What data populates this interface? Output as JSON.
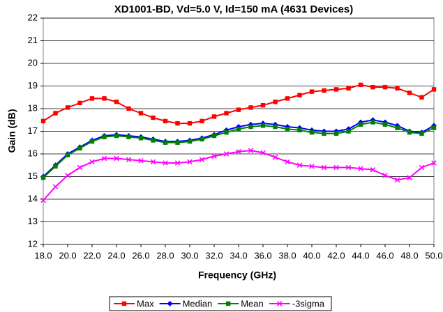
{
  "chart_data": {
    "type": "line",
    "title": "XD1001-BD, Vd=5.0 V, Id=150 mA (4631 Devices)",
    "x_label": "Frequency (GHz)",
    "y_label": "Gain (dB)",
    "x": [
      18,
      19,
      20,
      21,
      22,
      23,
      24,
      25,
      26,
      27,
      28,
      29,
      30,
      31,
      32,
      33,
      34,
      35,
      36,
      37,
      38,
      39,
      40,
      41,
      42,
      43,
      44,
      45,
      46,
      47,
      48,
      49,
      50
    ],
    "series": [
      {
        "name": "Max",
        "color": "#ff0000",
        "marker": "square",
        "values": [
          17.45,
          17.8,
          18.05,
          18.25,
          18.45,
          18.45,
          18.3,
          18.0,
          17.8,
          17.6,
          17.45,
          17.35,
          17.35,
          17.45,
          17.65,
          17.8,
          17.95,
          18.05,
          18.15,
          18.3,
          18.45,
          18.6,
          18.75,
          18.8,
          18.85,
          18.9,
          19.05,
          18.95,
          18.95,
          18.9,
          18.7,
          18.5,
          18.85
        ]
      },
      {
        "name": "Median",
        "color": "#0000ff",
        "marker": "diamond",
        "values": [
          15.0,
          15.5,
          16.0,
          16.3,
          16.6,
          16.8,
          16.85,
          16.8,
          16.75,
          16.65,
          16.55,
          16.55,
          16.6,
          16.7,
          16.85,
          17.05,
          17.2,
          17.3,
          17.35,
          17.3,
          17.2,
          17.15,
          17.05,
          17.0,
          17.0,
          17.1,
          17.4,
          17.5,
          17.4,
          17.25,
          17.0,
          16.95,
          17.25
        ]
      },
      {
        "name": "Mean",
        "color": "#008000",
        "marker": "square",
        "values": [
          14.95,
          15.45,
          15.95,
          16.25,
          16.55,
          16.75,
          16.8,
          16.75,
          16.7,
          16.6,
          16.5,
          16.5,
          16.55,
          16.65,
          16.8,
          16.95,
          17.1,
          17.2,
          17.25,
          17.2,
          17.1,
          17.05,
          16.95,
          16.9,
          16.9,
          17.0,
          17.3,
          17.4,
          17.3,
          17.15,
          16.95,
          16.9,
          17.15
        ]
      },
      {
        "name": "-3sigma",
        "color": "#ff00ff",
        "marker": "x",
        "values": [
          13.95,
          14.55,
          15.05,
          15.4,
          15.65,
          15.8,
          15.8,
          15.75,
          15.7,
          15.65,
          15.6,
          15.6,
          15.65,
          15.75,
          15.9,
          16.0,
          16.1,
          16.15,
          16.05,
          15.85,
          15.65,
          15.5,
          15.45,
          15.4,
          15.4,
          15.4,
          15.35,
          15.3,
          15.05,
          14.85,
          14.95,
          15.4,
          15.6
        ]
      }
    ],
    "xlim": [
      18,
      50
    ],
    "xticks": [
      {
        "value": 18,
        "label": "18.0"
      },
      {
        "value": 20,
        "label": "20.0"
      },
      {
        "value": 22,
        "label": "22.0"
      },
      {
        "value": 24,
        "label": "24.0"
      },
      {
        "value": 26,
        "label": "26.0"
      },
      {
        "value": 28,
        "label": "28.0"
      },
      {
        "value": 30,
        "label": "30.0"
      },
      {
        "value": 32,
        "label": "32.0"
      },
      {
        "value": 34,
        "label": "34.0"
      },
      {
        "value": 36,
        "label": "36.0"
      },
      {
        "value": 38,
        "label": "38.0"
      },
      {
        "value": 40,
        "label": "40.0"
      },
      {
        "value": 42,
        "label": "42.0"
      },
      {
        "value": 44,
        "label": "44.0"
      },
      {
        "value": 46,
        "label": "46.0"
      },
      {
        "value": 48,
        "label": "48.0"
      },
      {
        "value": 50,
        "label": "50.0"
      }
    ],
    "ylim": [
      12,
      22
    ],
    "yticks": [
      12,
      13,
      14,
      15,
      16,
      17,
      18,
      19,
      20,
      21,
      22
    ],
    "grid": true,
    "legend": "bottom"
  }
}
